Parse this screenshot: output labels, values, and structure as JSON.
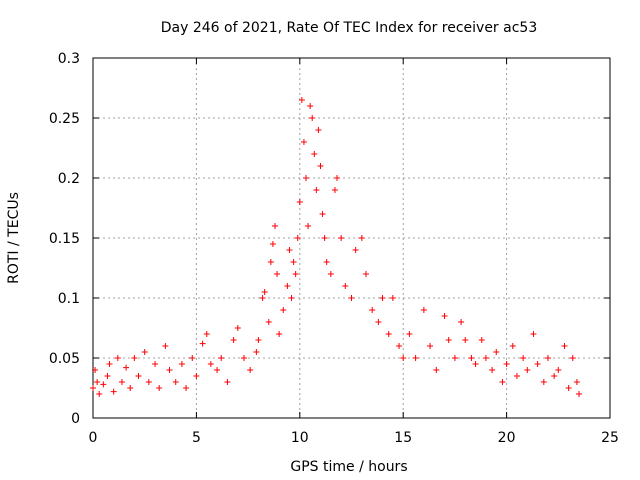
{
  "chart_data": {
    "type": "scatter",
    "title": "Day 246 of 2021, Rate Of TEC Index for receiver ac53",
    "xlabel": "GPS time / hours",
    "ylabel": "ROTI / TECUs",
    "xlim": [
      0,
      25
    ],
    "ylim": [
      0,
      0.3
    ],
    "x_ticks": [
      "0",
      "5",
      "10",
      "15",
      "20",
      "25"
    ],
    "y_ticks": [
      "0",
      "0.05",
      "0.1",
      "0.15",
      "0.2",
      "0.25",
      "0.3"
    ],
    "grid": true,
    "marker": "plus",
    "series": [
      {
        "color": "#ff0000",
        "points": [
          [
            0.0,
            0.025
          ],
          [
            0.1,
            0.04
          ],
          [
            0.2,
            0.03
          ],
          [
            0.3,
            0.02
          ],
          [
            0.5,
            0.028
          ],
          [
            0.7,
            0.035
          ],
          [
            0.8,
            0.045
          ],
          [
            1.0,
            0.022
          ],
          [
            1.2,
            0.05
          ],
          [
            1.4,
            0.03
          ],
          [
            1.6,
            0.042
          ],
          [
            1.8,
            0.025
          ],
          [
            2.0,
            0.05
          ],
          [
            2.2,
            0.035
          ],
          [
            2.5,
            0.055
          ],
          [
            2.7,
            0.03
          ],
          [
            3.0,
            0.045
          ],
          [
            3.2,
            0.025
          ],
          [
            3.5,
            0.06
          ],
          [
            3.7,
            0.04
          ],
          [
            4.0,
            0.03
          ],
          [
            4.3,
            0.045
          ],
          [
            4.5,
            0.025
          ],
          [
            4.8,
            0.05
          ],
          [
            5.0,
            0.035
          ],
          [
            5.3,
            0.062
          ],
          [
            5.5,
            0.07
          ],
          [
            5.7,
            0.045
          ],
          [
            6.0,
            0.04
          ],
          [
            6.2,
            0.05
          ],
          [
            6.5,
            0.03
          ],
          [
            6.8,
            0.065
          ],
          [
            7.0,
            0.075
          ],
          [
            7.3,
            0.05
          ],
          [
            7.6,
            0.04
          ],
          [
            7.9,
            0.055
          ],
          [
            8.0,
            0.065
          ],
          [
            8.2,
            0.1
          ],
          [
            8.3,
            0.105
          ],
          [
            8.5,
            0.08
          ],
          [
            8.6,
            0.13
          ],
          [
            8.7,
            0.145
          ],
          [
            8.8,
            0.16
          ],
          [
            8.9,
            0.12
          ],
          [
            9.0,
            0.07
          ],
          [
            9.2,
            0.09
          ],
          [
            9.4,
            0.11
          ],
          [
            9.5,
            0.14
          ],
          [
            9.6,
            0.1
          ],
          [
            9.7,
            0.13
          ],
          [
            9.8,
            0.12
          ],
          [
            9.9,
            0.15
          ],
          [
            10.0,
            0.18
          ],
          [
            10.1,
            0.265
          ],
          [
            10.2,
            0.23
          ],
          [
            10.3,
            0.2
          ],
          [
            10.4,
            0.16
          ],
          [
            10.5,
            0.26
          ],
          [
            10.6,
            0.25
          ],
          [
            10.7,
            0.22
          ],
          [
            10.8,
            0.19
          ],
          [
            10.9,
            0.24
          ],
          [
            11.0,
            0.21
          ],
          [
            11.1,
            0.17
          ],
          [
            11.2,
            0.15
          ],
          [
            11.3,
            0.13
          ],
          [
            11.5,
            0.12
          ],
          [
            11.7,
            0.19
          ],
          [
            11.8,
            0.2
          ],
          [
            12.0,
            0.15
          ],
          [
            12.2,
            0.11
          ],
          [
            12.5,
            0.1
          ],
          [
            12.7,
            0.14
          ],
          [
            13.0,
            0.15
          ],
          [
            13.2,
            0.12
          ],
          [
            13.5,
            0.09
          ],
          [
            13.8,
            0.08
          ],
          [
            14.0,
            0.1
          ],
          [
            14.3,
            0.07
          ],
          [
            14.5,
            0.1
          ],
          [
            14.8,
            0.06
          ],
          [
            15.0,
            0.05
          ],
          [
            15.3,
            0.07
          ],
          [
            15.6,
            0.05
          ],
          [
            16.0,
            0.09
          ],
          [
            16.3,
            0.06
          ],
          [
            16.6,
            0.04
          ],
          [
            17.0,
            0.085
          ],
          [
            17.2,
            0.065
          ],
          [
            17.5,
            0.05
          ],
          [
            17.8,
            0.08
          ],
          [
            18.0,
            0.065
          ],
          [
            18.3,
            0.05
          ],
          [
            18.5,
            0.045
          ],
          [
            18.8,
            0.065
          ],
          [
            19.0,
            0.05
          ],
          [
            19.3,
            0.04
          ],
          [
            19.5,
            0.055
          ],
          [
            19.8,
            0.03
          ],
          [
            20.0,
            0.045
          ],
          [
            20.3,
            0.06
          ],
          [
            20.5,
            0.035
          ],
          [
            20.8,
            0.05
          ],
          [
            21.0,
            0.04
          ],
          [
            21.3,
            0.07
          ],
          [
            21.5,
            0.045
          ],
          [
            21.8,
            0.03
          ],
          [
            22.0,
            0.05
          ],
          [
            22.3,
            0.035
          ],
          [
            22.5,
            0.04
          ],
          [
            22.8,
            0.06
          ],
          [
            23.0,
            0.025
          ],
          [
            23.2,
            0.05
          ],
          [
            23.4,
            0.03
          ],
          [
            23.5,
            0.02
          ]
        ]
      }
    ]
  }
}
